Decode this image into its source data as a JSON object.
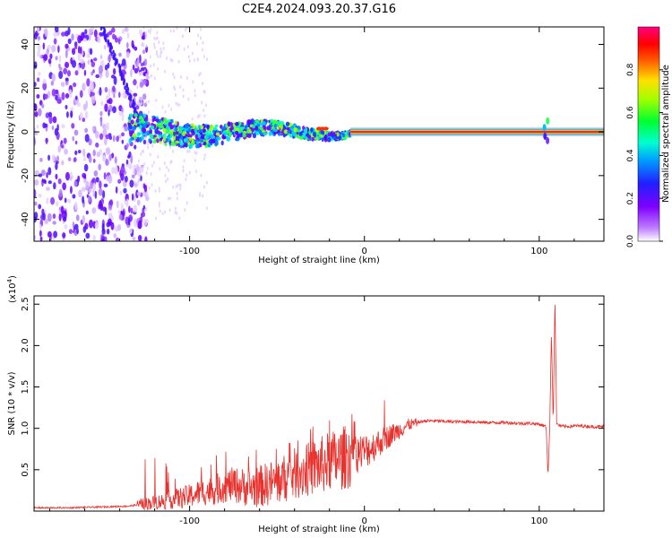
{
  "title": "C2E4.2024.093.20.37.G16",
  "chart_data": [
    {
      "type": "heatmap",
      "xlabel": "Height of straight line (km)",
      "ylabel": "Frequency (Hz)",
      "xlim": [
        -189,
        137
      ],
      "ylim": [
        -50,
        48
      ],
      "xticks": [
        -100,
        0,
        100
      ],
      "yticks": [
        -40,
        -20,
        0,
        20,
        40
      ],
      "colorbar": {
        "label": "Normalized spectral amplitude",
        "range": [
          0,
          1
        ],
        "ticks": [
          "0.0",
          "0.2",
          "0.4",
          "0.6",
          "0.8"
        ],
        "colormap": [
          "#e8d4ff",
          "#8a00ff",
          "#3000ff",
          "#0050ff",
          "#00d0ff",
          "#00ff70",
          "#a0ff00",
          "#ffe000",
          "#ff7000",
          "#ff0000",
          "#ff0090"
        ]
      },
      "features": {
        "carrier_frequency_hz": 0,
        "noise_region_km": [
          -189,
          -130
        ],
        "signal_start_km": -135,
        "strong_line_start_km": -8,
        "disturbance_near_km": 104,
        "diagonal_streak_km": [
          -130,
          -150
        ]
      }
    },
    {
      "type": "line",
      "xlabel": "Height of straight line (km)",
      "ylabel": "SNR (10 * v/v)",
      "ylabel_multiplier": "(x10",
      "ylabel_exponent": "4",
      "ylabel_multiplier_close": ")",
      "xlim": [
        -189,
        137
      ],
      "ylim": [
        0,
        2.6
      ],
      "xticks": [
        -100,
        0,
        100
      ],
      "yticks": [
        "0.5",
        "1.0",
        "1.5",
        "2.0",
        "2.5"
      ],
      "color": "#e8322e",
      "series": [
        {
          "x": [
            -189,
            -170,
            -150,
            -135,
            -125,
            -115,
            -105,
            -100,
            -95,
            -85,
            -80,
            -75,
            -70,
            -65,
            -60,
            -55,
            -50,
            -45,
            -40,
            -35,
            -30,
            -25,
            -20,
            -15,
            -10,
            -5,
            0,
            5,
            10,
            15,
            20,
            25,
            30,
            35,
            40,
            50,
            60,
            70,
            80,
            90,
            95,
            100,
            104,
            105,
            106,
            107,
            108,
            109,
            110,
            112,
            115,
            120,
            125,
            130,
            137
          ],
          "y": [
            0.04,
            0.04,
            0.05,
            0.06,
            0.09,
            0.12,
            0.16,
            0.18,
            0.22,
            0.26,
            0.3,
            0.32,
            0.3,
            0.28,
            0.3,
            0.33,
            0.36,
            0.4,
            0.45,
            0.48,
            0.52,
            0.55,
            0.6,
            0.62,
            0.66,
            0.7,
            0.72,
            0.78,
            0.85,
            0.92,
            0.98,
            1.04,
            1.07,
            1.09,
            1.09,
            1.08,
            1.08,
            1.07,
            1.07,
            1.06,
            1.06,
            1.05,
            1.02,
            0.42,
            1.0,
            2.15,
            1.05,
            2.58,
            1.05,
            1.03,
            1.02,
            1.03,
            1.03,
            1.02,
            1.02
          ]
        }
      ]
    }
  ]
}
